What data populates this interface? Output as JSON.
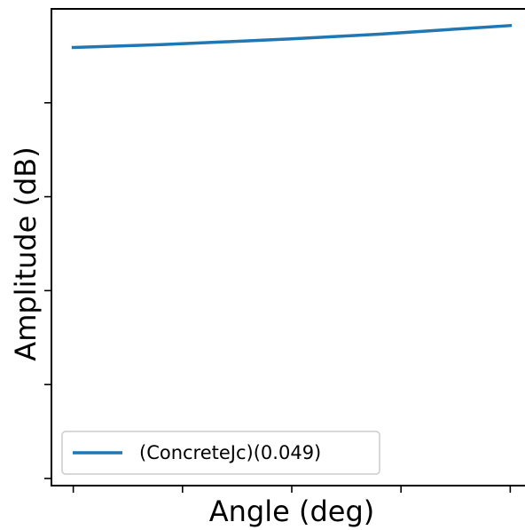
{
  "chart_data": {
    "type": "line",
    "xlabel": "Angle (deg)",
    "ylabel": "Amplitude (dB)",
    "grid": false,
    "legend_placement": "lower-left",
    "series": [
      {
        "name": "(ConcreteJc)(0.049)",
        "color": "#1f77b4",
        "x": [
          0,
          0.1,
          0.2,
          0.3,
          0.4,
          0.5,
          0.6,
          0.7,
          0.8,
          0.9,
          1.0
        ],
        "y": [
          0.919,
          0.922,
          0.925,
          0.929,
          0.933,
          0.937,
          0.942,
          0.947,
          0.953,
          0.959,
          0.965
        ]
      }
    ],
    "xlim": [
      -0.05,
      1.05
    ],
    "ylim": [
      0.0,
      1.0
    ]
  }
}
